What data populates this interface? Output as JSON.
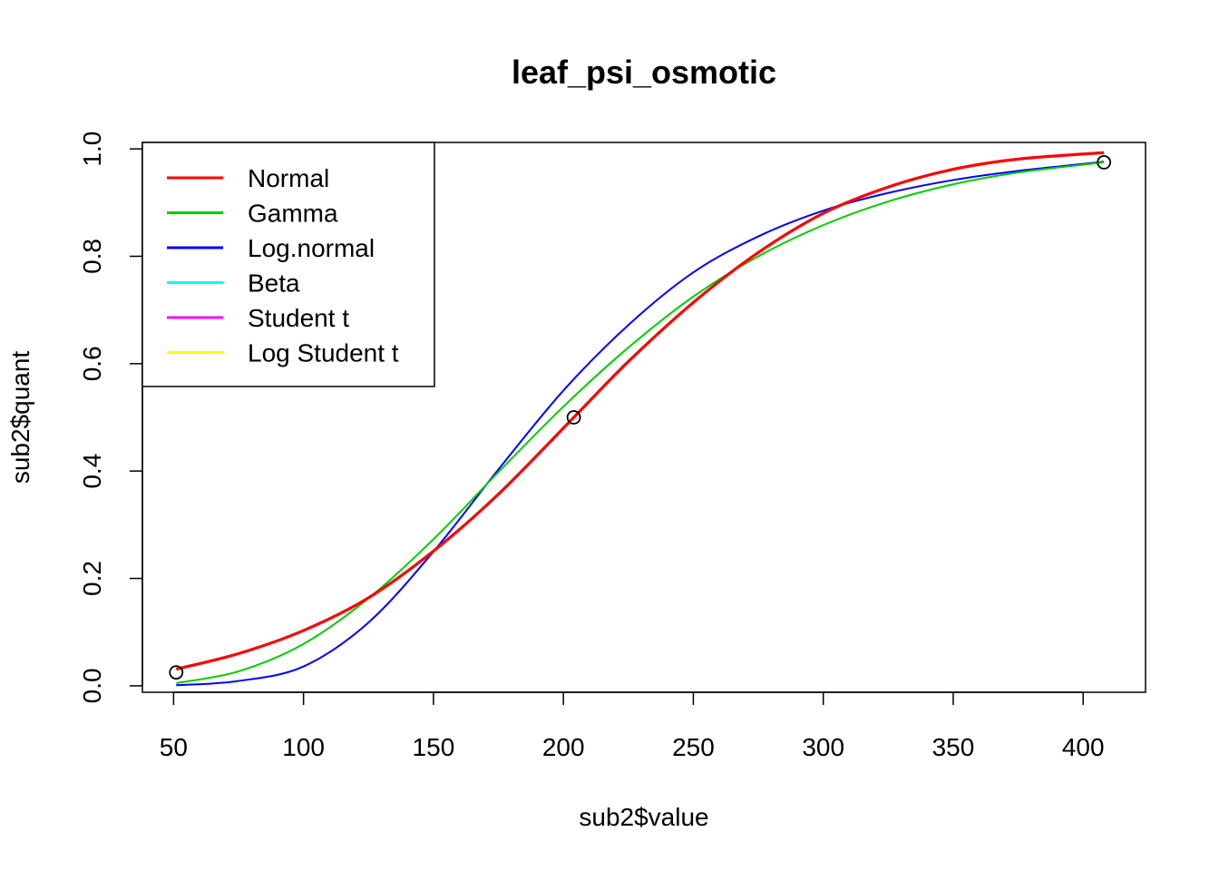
{
  "chart_data": {
    "type": "line",
    "title": "leaf_psi_osmotic",
    "xlabel": "sub2$value",
    "ylabel": "sub2$quant",
    "xlim": [
      38,
      424
    ],
    "ylim": [
      -0.012,
      1.012
    ],
    "x_ticks": [
      50,
      100,
      150,
      200,
      250,
      300,
      350,
      400
    ],
    "x_tick_labels": [
      "50",
      "100",
      "150",
      "200",
      "250",
      "300",
      "350",
      "400"
    ],
    "y_ticks": [
      0.0,
      0.2,
      0.4,
      0.6,
      0.8,
      1.0
    ],
    "y_tick_labels": [
      "0.0",
      "0.2",
      "0.4",
      "0.6",
      "0.8",
      "1.0"
    ],
    "grid": false,
    "legend_position": "top-left",
    "points": [
      {
        "x": 51,
        "y": 0.025
      },
      {
        "x": 204,
        "y": 0.5
      },
      {
        "x": 408,
        "y": 0.975
      }
    ],
    "series": [
      {
        "name": "Normal",
        "color": "#ff0000",
        "x": [
          51,
          75,
          100,
          125,
          150,
          175,
          204,
          225,
          250,
          275,
          300,
          325,
          350,
          375,
          408
        ],
        "y": [
          0.031,
          0.06,
          0.103,
          0.164,
          0.251,
          0.357,
          0.5,
          0.604,
          0.714,
          0.807,
          0.88,
          0.929,
          0.962,
          0.981,
          0.993
        ]
      },
      {
        "name": "Gamma",
        "color": "#00cd00",
        "x": [
          51,
          75,
          100,
          125,
          150,
          175,
          200,
          225,
          250,
          275,
          300,
          325,
          350,
          375,
          408
        ],
        "y": [
          0.005,
          0.027,
          0.078,
          0.163,
          0.273,
          0.398,
          0.52,
          0.63,
          0.725,
          0.8,
          0.858,
          0.902,
          0.934,
          0.956,
          0.975
        ]
      },
      {
        "name": "Log.normal",
        "color": "#0000ff",
        "x": [
          51,
          75,
          100,
          125,
          150,
          175,
          200,
          225,
          250,
          275,
          300,
          325,
          350,
          375,
          408
        ],
        "y": [
          0.001,
          0.009,
          0.036,
          0.118,
          0.25,
          0.403,
          0.55,
          0.672,
          0.77,
          0.837,
          0.885,
          0.918,
          0.942,
          0.959,
          0.976
        ]
      },
      {
        "name": "Beta",
        "color": "#00ffff",
        "x": [],
        "y": []
      },
      {
        "name": "Student t",
        "color": "#ff00ff",
        "x": [],
        "y": []
      },
      {
        "name": "Log Student t",
        "color": "#ffff00",
        "x": [],
        "y": []
      }
    ]
  }
}
